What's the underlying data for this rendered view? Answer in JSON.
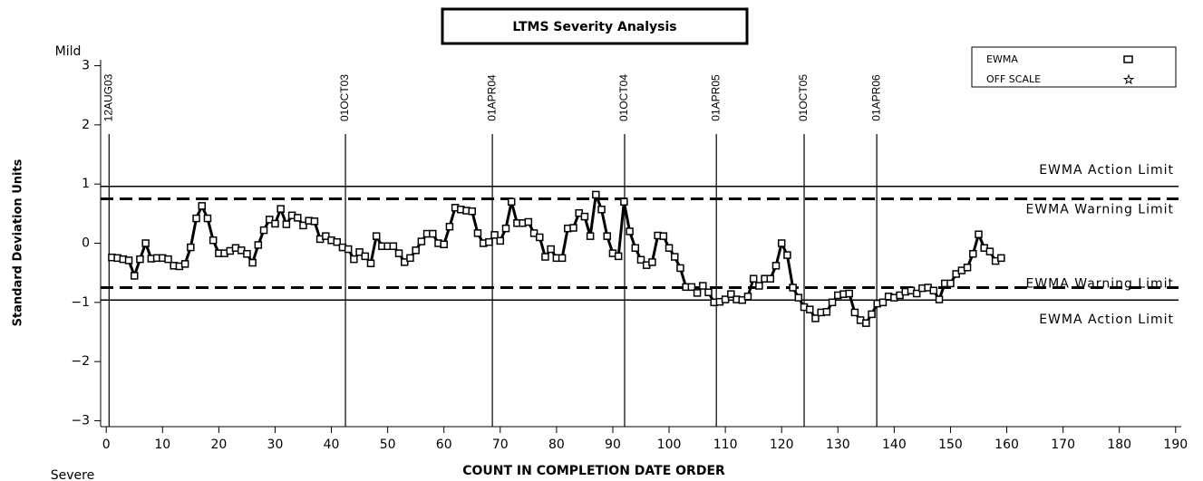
{
  "chart_data": {
    "type": "line",
    "title": "LTMS Severity Analysis",
    "x_label": "COUNT IN COMPLETION DATE ORDER",
    "y_label": "Standard Deviation Units",
    "y_top_label": "Mild",
    "y_bottom_label": "Severe",
    "xlim": [
      -1,
      191
    ],
    "ylim": [
      -3.1,
      3.1
    ],
    "xticks": [
      0,
      10,
      20,
      30,
      40,
      50,
      60,
      70,
      80,
      90,
      100,
      110,
      120,
      130,
      140,
      150,
      160,
      170,
      180,
      190
    ],
    "yticks": [
      {
        "value": -3,
        "label": "−3"
      },
      {
        "value": -2,
        "label": "−2"
      },
      {
        "value": -1,
        "label": "−1"
      },
      0,
      1,
      2,
      3
    ],
    "x": [
      1,
      2,
      3,
      4,
      5,
      6,
      7,
      8,
      9,
      10,
      11,
      12,
      13,
      14,
      15,
      16,
      17,
      18,
      19,
      20,
      21,
      22,
      23,
      24,
      25,
      26,
      27,
      28,
      29,
      30,
      31,
      32,
      33,
      34,
      35,
      36,
      37,
      38,
      39,
      40,
      41,
      42,
      43,
      44,
      45,
      46,
      47,
      48,
      49,
      50,
      51,
      52,
      53,
      54,
      55,
      56,
      57,
      58,
      59,
      60,
      61,
      62,
      63,
      64,
      65,
      66,
      67,
      68,
      69,
      70,
      71,
      72,
      73,
      74,
      75,
      76,
      77,
      78,
      79,
      80,
      81,
      82,
      83,
      84,
      85,
      86,
      87,
      88,
      89,
      90,
      91,
      92,
      93,
      94,
      95,
      96,
      97,
      98,
      99,
      100,
      101,
      102,
      103,
      104,
      105,
      106,
      107,
      108,
      109,
      110,
      111,
      112,
      113,
      114,
      115,
      116,
      117,
      118,
      119,
      120,
      121,
      122,
      123,
      124,
      125,
      126,
      127,
      128,
      129,
      130,
      131,
      132,
      133,
      134,
      135,
      136,
      137,
      138,
      139,
      140,
      141,
      142,
      143,
      144,
      145,
      146,
      147,
      148,
      149,
      150,
      151,
      152,
      153,
      154,
      155,
      156,
      157,
      158,
      159
    ],
    "series": [
      {
        "name": "EWMA",
        "color": "#000000",
        "marker": "square",
        "values": [
          -0.24,
          -0.25,
          -0.27,
          -0.29,
          -0.55,
          -0.27,
          0.0,
          -0.26,
          -0.25,
          -0.25,
          -0.27,
          -0.38,
          -0.39,
          -0.35,
          -0.07,
          0.42,
          0.63,
          0.42,
          0.05,
          -0.17,
          -0.17,
          -0.13,
          -0.08,
          -0.12,
          -0.18,
          -0.33,
          -0.03,
          0.22,
          0.4,
          0.33,
          0.58,
          0.32,
          0.47,
          0.43,
          0.3,
          0.38,
          0.37,
          0.07,
          0.12,
          0.05,
          0.02,
          -0.07,
          -0.1,
          -0.27,
          -0.15,
          -0.22,
          -0.34,
          0.12,
          -0.05,
          -0.05,
          -0.05,
          -0.17,
          -0.32,
          -0.25,
          -0.12,
          0.03,
          0.16,
          0.16,
          0.0,
          -0.02,
          0.28,
          0.6,
          0.57,
          0.55,
          0.54,
          0.17,
          0.0,
          0.02,
          0.14,
          0.04,
          0.25,
          0.7,
          0.34,
          0.34,
          0.36,
          0.17,
          0.1,
          -0.23,
          -0.1,
          -0.25,
          -0.25,
          0.25,
          0.26,
          0.51,
          0.45,
          0.12,
          0.82,
          0.57,
          0.12,
          -0.17,
          -0.22,
          0.7,
          0.2,
          -0.08,
          -0.28,
          -0.37,
          -0.32,
          0.13,
          0.12,
          -0.08,
          -0.23,
          -0.42,
          -0.74,
          -0.74,
          -0.84,
          -0.72,
          -0.83,
          -1.0,
          -0.99,
          -0.95,
          -0.86,
          -0.95,
          -0.96,
          -0.9,
          -0.6,
          -0.72,
          -0.6,
          -0.6,
          -0.38,
          0.0,
          -0.2,
          -0.75,
          -0.92,
          -1.08,
          -1.12,
          -1.27,
          -1.17,
          -1.16,
          -1.0,
          -0.88,
          -0.86,
          -0.85,
          -1.17,
          -1.3,
          -1.35,
          -1.2,
          -1.02,
          -1.0,
          -0.9,
          -0.92,
          -0.88,
          -0.82,
          -0.8,
          -0.85,
          -0.76,
          -0.75,
          -0.8,
          -0.95,
          -0.68,
          -0.68,
          -0.52,
          -0.46,
          -0.41,
          -0.18,
          0.15,
          -0.08,
          -0.14,
          -0.3,
          -0.25
        ]
      }
    ],
    "legend_extra": [
      {
        "label": "OFF SCALE",
        "marker": "star"
      }
    ],
    "hlines": [
      {
        "label": "EWMA Action Limit",
        "y": 0.96,
        "style": "solid"
      },
      {
        "label": "EWMA Warning Limit",
        "y": 0.75,
        "style": "dashed"
      },
      {
        "label": "EWMA Warning Limit",
        "y": -0.75,
        "style": "dashed"
      },
      {
        "label": "EWMA Action Limit",
        "y": -0.96,
        "style": "solid"
      }
    ],
    "vlines": [
      {
        "label": "12AUG03",
        "x": 0.5
      },
      {
        "label": "01OCT03",
        "x": 42.5
      },
      {
        "label": "01APR04",
        "x": 68.6
      },
      {
        "label": "01OCT04",
        "x": 92.1
      },
      {
        "label": "01APR05",
        "x": 108.4
      },
      {
        "label": "01OCT05",
        "x": 124
      },
      {
        "label": "01APR06",
        "x": 136.9
      }
    ]
  }
}
